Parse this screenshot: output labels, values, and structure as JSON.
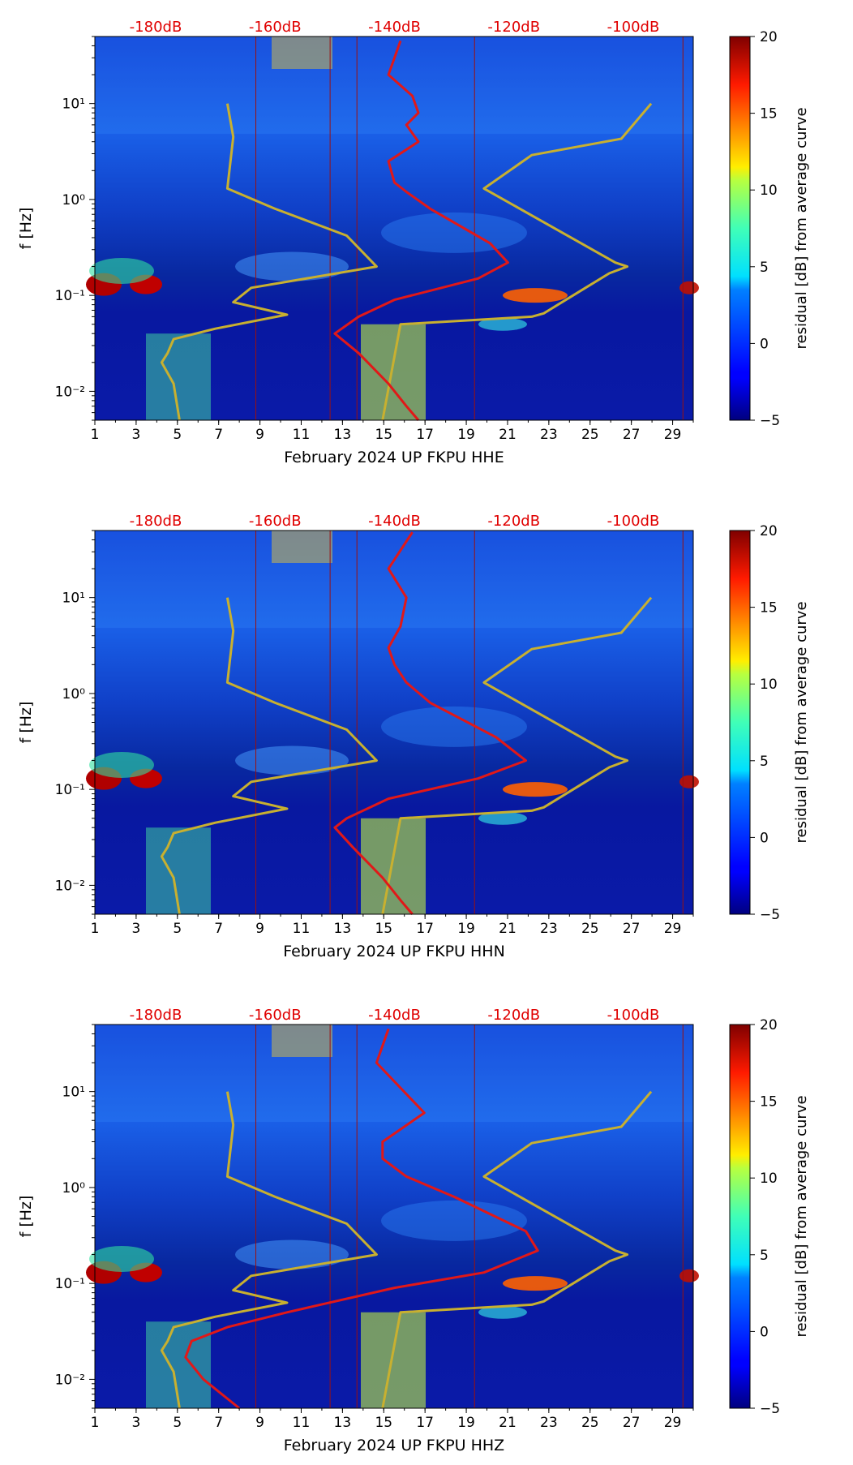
{
  "chart_data": [
    {
      "type": "heatmap",
      "xlabel": "February 2024 UP FKPU  HHE",
      "ylabel": "f [Hz]",
      "x_ticks": [
        "1",
        "3",
        "5",
        "7",
        "9",
        "11",
        "13",
        "15",
        "17",
        "19",
        "21",
        "23",
        "25",
        "27",
        "29"
      ],
      "y_ticks": [
        "10⁻²",
        "10⁻¹",
        "10⁰",
        "10¹"
      ],
      "top_ticks": [
        "-180dB",
        "-160dB",
        "-140dB",
        "-120dB",
        "-100dB"
      ],
      "xlim": [
        1,
        30
      ],
      "ylim_hz": [
        0.005,
        50
      ],
      "y_scale": "log",
      "colorbar": {
        "label": "residual [dB] from average curve",
        "ticks": [
          "−5",
          "0",
          "5",
          "10",
          "15",
          "20"
        ],
        "range": [
          -5,
          20
        ],
        "colormap": "jet"
      },
      "lines": {
        "yellow_curve": {
          "color": "#c8b030",
          "db_top_scale": [
            [
              -168,
              10
            ],
            [
              -167,
              4.5
            ],
            [
              -168,
              1.3
            ],
            [
              -160,
              0.8
            ],
            [
              -148,
              0.42
            ],
            [
              -143,
              0.2
            ],
            [
              -164,
              0.12
            ],
            [
              -167,
              0.085
            ],
            [
              -158,
              0.063
            ],
            [
              -170,
              0.045
            ],
            [
              -177,
              0.035
            ],
            [
              -178,
              0.025
            ],
            [
              -179,
              0.02
            ],
            [
              -177,
              0.012
            ],
            [
              -176,
              0.005
            ]
          ]
        },
        "yellow_curve_right": {
          "color": "#c8b030",
          "db_top_scale": [
            [
              -142,
              0.005
            ],
            [
              -139,
              0.05
            ],
            [
              -117,
              0.06
            ],
            [
              -115,
              0.065
            ],
            [
              -108,
              0.12
            ],
            [
              -104,
              0.17
            ],
            [
              -101,
              0.2
            ],
            [
              -103,
              0.22
            ],
            [
              -125,
              1.3
            ],
            [
              -117,
              2.9
            ],
            [
              -102,
              4.3
            ],
            [
              -97,
              10
            ]
          ]
        },
        "red_curve": {
          "color": "#e11818",
          "db_top_scale": [
            [
              -139,
              45
            ],
            [
              -141,
              20
            ],
            [
              -137,
              12
            ],
            [
              -136,
              8
            ],
            [
              -138,
              6
            ],
            [
              -136,
              4
            ],
            [
              -141,
              2.5
            ],
            [
              -140,
              1.5
            ],
            [
              -138,
              1.2
            ],
            [
              -134,
              0.8
            ],
            [
              -124,
              0.35
            ],
            [
              -121,
              0.22
            ],
            [
              -126,
              0.15
            ],
            [
              -140,
              0.09
            ],
            [
              -146,
              0.06
            ],
            [
              -150,
              0.04
            ],
            [
              -146,
              0.025
            ],
            [
              -141,
              0.012
            ],
            [
              -138,
              0.007
            ],
            [
              -136,
              0.005
            ]
          ]
        }
      }
    },
    {
      "type": "heatmap",
      "xlabel": "February 2024 UP FKPU  HHN",
      "ylabel": "f [Hz]",
      "x_ticks": [
        "1",
        "3",
        "5",
        "7",
        "9",
        "11",
        "13",
        "15",
        "17",
        "19",
        "21",
        "23",
        "25",
        "27",
        "29"
      ],
      "y_ticks": [
        "10⁻²",
        "10⁻¹",
        "10⁰",
        "10¹"
      ],
      "top_ticks": [
        "-180dB",
        "-160dB",
        "-140dB",
        "-120dB",
        "-100dB"
      ],
      "xlim": [
        1,
        30
      ],
      "ylim_hz": [
        0.005,
        50
      ],
      "y_scale": "log",
      "colorbar": {
        "label": "residual [dB] from average curve",
        "ticks": [
          "−5",
          "0",
          "5",
          "10",
          "15",
          "20"
        ],
        "range": [
          -5,
          20
        ],
        "colormap": "jet"
      },
      "lines": {
        "yellow_curve": {
          "color": "#c8b030",
          "db_top_scale": [
            [
              -168,
              10
            ],
            [
              -167,
              4.5
            ],
            [
              -168,
              1.3
            ],
            [
              -160,
              0.8
            ],
            [
              -148,
              0.42
            ],
            [
              -143,
              0.2
            ],
            [
              -164,
              0.12
            ],
            [
              -167,
              0.085
            ],
            [
              -158,
              0.063
            ],
            [
              -170,
              0.045
            ],
            [
              -177,
              0.035
            ],
            [
              -178,
              0.025
            ],
            [
              -179,
              0.02
            ],
            [
              -177,
              0.012
            ],
            [
              -176,
              0.005
            ]
          ]
        },
        "yellow_curve_right": {
          "color": "#c8b030",
          "db_top_scale": [
            [
              -142,
              0.005
            ],
            [
              -139,
              0.05
            ],
            [
              -117,
              0.06
            ],
            [
              -115,
              0.065
            ],
            [
              -108,
              0.12
            ],
            [
              -104,
              0.17
            ],
            [
              -101,
              0.2
            ],
            [
              -103,
              0.22
            ],
            [
              -125,
              1.3
            ],
            [
              -117,
              2.9
            ],
            [
              -102,
              4.3
            ],
            [
              -97,
              10
            ]
          ]
        },
        "red_curve": {
          "color": "#e11818",
          "db_top_scale": [
            [
              -137,
              48
            ],
            [
              -141,
              20
            ],
            [
              -138,
              10
            ],
            [
              -139,
              5
            ],
            [
              -141,
              3
            ],
            [
              -140,
              2
            ],
            [
              -138,
              1.3
            ],
            [
              -134,
              0.8
            ],
            [
              -123,
              0.35
            ],
            [
              -118,
              0.2
            ],
            [
              -126,
              0.13
            ],
            [
              -141,
              0.08
            ],
            [
              -148,
              0.05
            ],
            [
              -150,
              0.04
            ],
            [
              -147,
              0.025
            ],
            [
              -142,
              0.012
            ],
            [
              -139,
              0.007
            ],
            [
              -137,
              0.005
            ]
          ]
        }
      }
    },
    {
      "type": "heatmap",
      "xlabel": "February 2024 UP FKPU  HHZ",
      "ylabel": "f [Hz]",
      "x_ticks": [
        "1",
        "3",
        "5",
        "7",
        "9",
        "11",
        "13",
        "15",
        "17",
        "19",
        "21",
        "23",
        "25",
        "27",
        "29"
      ],
      "y_ticks": [
        "10⁻²",
        "10⁻¹",
        "10⁰",
        "10¹"
      ],
      "top_ticks": [
        "-180dB",
        "-160dB",
        "-140dB",
        "-120dB",
        "-100dB"
      ],
      "xlim": [
        1,
        30
      ],
      "ylim_hz": [
        0.005,
        50
      ],
      "y_scale": "log",
      "colorbar": {
        "label": "residual [dB] from average curve",
        "ticks": [
          "−5",
          "0",
          "5",
          "10",
          "15",
          "20"
        ],
        "range": [
          -5,
          20
        ],
        "colormap": "jet"
      },
      "lines": {
        "yellow_curve": {
          "color": "#c8b030",
          "db_top_scale": [
            [
              -168,
              10
            ],
            [
              -167,
              4.5
            ],
            [
              -168,
              1.3
            ],
            [
              -160,
              0.8
            ],
            [
              -148,
              0.42
            ],
            [
              -143,
              0.2
            ],
            [
              -164,
              0.12
            ],
            [
              -167,
              0.085
            ],
            [
              -158,
              0.063
            ],
            [
              -170,
              0.045
            ],
            [
              -177,
              0.035
            ],
            [
              -178,
              0.025
            ],
            [
              -179,
              0.02
            ],
            [
              -177,
              0.012
            ],
            [
              -176,
              0.005
            ]
          ]
        },
        "yellow_curve_right": {
          "color": "#c8b030",
          "db_top_scale": [
            [
              -142,
              0.005
            ],
            [
              -139,
              0.05
            ],
            [
              -117,
              0.06
            ],
            [
              -115,
              0.065
            ],
            [
              -108,
              0.12
            ],
            [
              -104,
              0.17
            ],
            [
              -101,
              0.2
            ],
            [
              -103,
              0.22
            ],
            [
              -125,
              1.3
            ],
            [
              -117,
              2.9
            ],
            [
              -102,
              4.3
            ],
            [
              -97,
              10
            ]
          ]
        },
        "red_curve": {
          "color": "#e11818",
          "db_top_scale": [
            [
              -141,
              45
            ],
            [
              -143,
              20
            ],
            [
              -135,
              6
            ],
            [
              -142,
              3
            ],
            [
              -142,
              2
            ],
            [
              -138,
              1.3
            ],
            [
              -130,
              0.8
            ],
            [
              -118,
              0.35
            ],
            [
              -116,
              0.22
            ],
            [
              -125,
              0.13
            ],
            [
              -140,
              0.09
            ],
            [
              -158,
              0.05
            ],
            [
              -168,
              0.035
            ],
            [
              -174,
              0.025
            ],
            [
              -175,
              0.017
            ],
            [
              -172,
              0.01
            ],
            [
              -166,
              0.005
            ]
          ]
        }
      }
    }
  ]
}
